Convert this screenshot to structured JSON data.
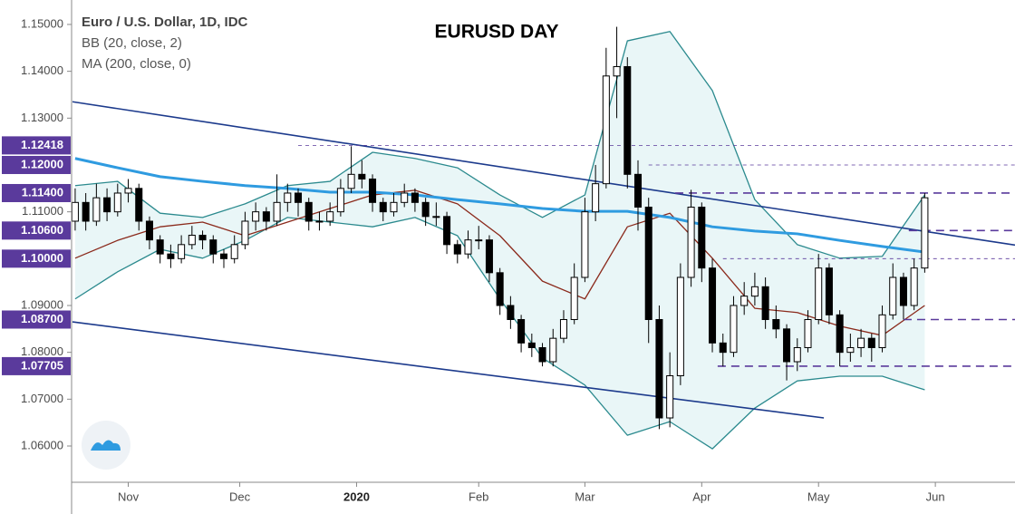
{
  "chart_data": {
    "type": "candlestick",
    "title": "EURUSD DAY",
    "header": [
      "Euro / U.S. Dollar, 1D, IDC",
      "BB (20, close, 2)",
      "MA (200, close, 0)"
    ],
    "xlim": [
      -0.5,
      177
    ],
    "ylim": [
      1.05226,
      1.15522
    ],
    "xticks": [
      {
        "value": 10,
        "label": "Nov"
      },
      {
        "value": 31,
        "label": "Dec"
      },
      {
        "value": 53,
        "label": "2020"
      },
      {
        "value": 76,
        "label": "Feb"
      },
      {
        "value": 96,
        "label": "Mar"
      },
      {
        "value": 118,
        "label": "Apr"
      },
      {
        "value": 140,
        "label": "May"
      },
      {
        "value": 162,
        "label": "Jun"
      }
    ],
    "yticks": [
      {
        "value": 1.15,
        "label": "1.15000"
      },
      {
        "value": 1.14,
        "label": "1.14000"
      },
      {
        "value": 1.13,
        "label": "1.13000"
      },
      {
        "value": 1.11,
        "label": "1.11000"
      },
      {
        "value": 1.09,
        "label": "1.09000"
      },
      {
        "value": 1.08,
        "label": "1.08000"
      },
      {
        "value": 1.07,
        "label": "1.07000"
      },
      {
        "value": 1.06,
        "label": "1.06000"
      }
    ],
    "x": [
      0,
      2,
      4,
      6,
      8,
      10,
      12,
      14,
      16,
      18,
      20,
      22,
      24,
      26,
      28,
      30,
      32,
      34,
      36,
      38,
      40,
      42,
      44,
      46,
      48,
      50,
      52,
      54,
      56,
      58,
      60,
      62,
      64,
      66,
      68,
      70,
      72,
      74,
      76,
      78,
      80,
      82,
      84,
      86,
      88,
      90,
      92,
      94,
      96,
      98,
      100,
      102,
      104,
      106,
      108,
      110,
      112,
      114,
      116,
      118,
      120,
      122,
      124,
      126,
      128,
      130,
      132,
      134,
      136,
      138,
      140,
      142,
      144,
      146,
      148,
      150,
      152,
      154,
      156,
      158,
      160
    ],
    "candles": [
      [
        1.108,
        1.115,
        1.106,
        1.112
      ],
      [
        1.112,
        1.114,
        1.106,
        1.108
      ],
      [
        1.108,
        1.116,
        1.107,
        1.113
      ],
      [
        1.113,
        1.115,
        1.108,
        1.11
      ],
      [
        1.11,
        1.116,
        1.109,
        1.114
      ],
      [
        1.114,
        1.117,
        1.112,
        1.115
      ],
      [
        1.115,
        1.116,
        1.106,
        1.108
      ],
      [
        1.108,
        1.109,
        1.102,
        1.104
      ],
      [
        1.104,
        1.105,
        1.099,
        1.101
      ],
      [
        1.101,
        1.103,
        1.098,
        1.1
      ],
      [
        1.1,
        1.105,
        1.099,
        1.103
      ],
      [
        1.103,
        1.107,
        1.102,
        1.105
      ],
      [
        1.105,
        1.106,
        1.102,
        1.104
      ],
      [
        1.104,
        1.105,
        1.099,
        1.101
      ],
      [
        1.101,
        1.102,
        1.098,
        1.1
      ],
      [
        1.1,
        1.105,
        1.099,
        1.103
      ],
      [
        1.103,
        1.11,
        1.102,
        1.108
      ],
      [
        1.108,
        1.112,
        1.106,
        1.11
      ],
      [
        1.11,
        1.111,
        1.106,
        1.108
      ],
      [
        1.108,
        1.118,
        1.107,
        1.112
      ],
      [
        1.112,
        1.116,
        1.11,
        1.114
      ],
      [
        1.114,
        1.115,
        1.109,
        1.112
      ],
      [
        1.112,
        1.113,
        1.106,
        1.108
      ],
      [
        1.108,
        1.11,
        1.106,
        1.108
      ],
      [
        1.108,
        1.112,
        1.107,
        1.11
      ],
      [
        1.11,
        1.117,
        1.109,
        1.115
      ],
      [
        1.115,
        1.124,
        1.114,
        1.118
      ],
      [
        1.118,
        1.121,
        1.115,
        1.117
      ],
      [
        1.117,
        1.118,
        1.11,
        1.112
      ],
      [
        1.112,
        1.113,
        1.108,
        1.11
      ],
      [
        1.11,
        1.114,
        1.109,
        1.112
      ],
      [
        1.112,
        1.116,
        1.111,
        1.114
      ],
      [
        1.114,
        1.115,
        1.11,
        1.112
      ],
      [
        1.112,
        1.113,
        1.107,
        1.109
      ],
      [
        1.109,
        1.112,
        1.107,
        1.109
      ],
      [
        1.109,
        1.11,
        1.101,
        1.103
      ],
      [
        1.103,
        1.104,
        1.099,
        1.101
      ],
      [
        1.101,
        1.106,
        1.1,
        1.104
      ],
      [
        1.104,
        1.107,
        1.102,
        1.104
      ],
      [
        1.104,
        1.105,
        1.095,
        1.097
      ],
      [
        1.097,
        1.098,
        1.088,
        1.09
      ],
      [
        1.09,
        1.092,
        1.085,
        1.087
      ],
      [
        1.087,
        1.088,
        1.08,
        1.082
      ],
      [
        1.082,
        1.084,
        1.079,
        1.081
      ],
      [
        1.081,
        1.082,
        1.077,
        1.078
      ],
      [
        1.078,
        1.085,
        1.077,
        1.083
      ],
      [
        1.083,
        1.089,
        1.082,
        1.087
      ],
      [
        1.087,
        1.099,
        1.086,
        1.096
      ],
      [
        1.096,
        1.113,
        1.095,
        1.11
      ],
      [
        1.11,
        1.12,
        1.108,
        1.116
      ],
      [
        1.116,
        1.145,
        1.115,
        1.139
      ],
      [
        1.139,
        1.1495,
        1.13,
        1.141
      ],
      [
        1.141,
        1.143,
        1.115,
        1.118
      ],
      [
        1.118,
        1.121,
        1.106,
        1.111
      ],
      [
        1.111,
        1.113,
        1.082,
        1.087
      ],
      [
        1.087,
        1.09,
        1.0636,
        1.066
      ],
      [
        1.066,
        1.08,
        1.064,
        1.075
      ],
      [
        1.075,
        1.099,
        1.073,
        1.096
      ],
      [
        1.096,
        1.1147,
        1.094,
        1.111
      ],
      [
        1.111,
        1.112,
        1.095,
        1.098
      ],
      [
        1.098,
        1.1,
        1.08,
        1.082
      ],
      [
        1.082,
        1.084,
        1.077,
        1.08
      ],
      [
        1.08,
        1.092,
        1.079,
        1.09
      ],
      [
        1.09,
        1.095,
        1.088,
        1.092
      ],
      [
        1.092,
        1.097,
        1.09,
        1.094
      ],
      [
        1.094,
        1.096,
        1.085,
        1.087
      ],
      [
        1.087,
        1.09,
        1.083,
        1.085
      ],
      [
        1.085,
        1.086,
        1.074,
        1.078
      ],
      [
        1.078,
        1.083,
        1.076,
        1.081
      ],
      [
        1.081,
        1.089,
        1.08,
        1.087
      ],
      [
        1.087,
        1.101,
        1.086,
        1.098
      ],
      [
        1.098,
        1.099,
        1.086,
        1.088
      ],
      [
        1.088,
        1.089,
        1.077,
        1.08
      ],
      [
        1.08,
        1.084,
        1.078,
        1.081
      ],
      [
        1.081,
        1.085,
        1.079,
        1.083
      ],
      [
        1.083,
        1.084,
        1.078,
        1.081
      ],
      [
        1.081,
        1.09,
        1.08,
        1.088
      ],
      [
        1.088,
        1.099,
        1.087,
        1.096
      ],
      [
        1.096,
        1.097,
        1.087,
        1.09
      ],
      [
        1.09,
        1.1,
        1.089,
        1.098
      ],
      [
        1.098,
        1.114,
        1.097,
        1.113
      ]
    ],
    "line_x": [
      0,
      8,
      16,
      24,
      32,
      40,
      48,
      56,
      64,
      72,
      80,
      88,
      96,
      104,
      112,
      120,
      128,
      136,
      144,
      152,
      160
    ],
    "bb_upper": {
      "color": "#2b8a8e",
      "values": [
        1.1156,
        1.1165,
        1.1097,
        1.1088,
        1.1117,
        1.1156,
        1.1165,
        1.1227,
        1.1214,
        1.1194,
        1.1136,
        1.1088,
        1.1136,
        1.1465,
        1.1485,
        1.1359,
        1.1126,
        1.103,
        1.1001,
        1.1005,
        1.1136
      ]
    },
    "bb_lower": {
      "color": "#2b8a8e",
      "values": [
        1.0914,
        1.0972,
        1.102,
        1.1001,
        1.1039,
        1.1088,
        1.1078,
        1.1068,
        1.1088,
        1.1049,
        1.0914,
        1.0788,
        1.073,
        1.0623,
        1.0652,
        1.0594,
        1.0681,
        1.0739,
        1.0749,
        1.0749,
        1.072
      ]
    },
    "band_fill": "#e9f6f7",
    "ma20": {
      "color": "#8b2a1c",
      "values": [
        1.1001,
        1.1039,
        1.1068,
        1.1078,
        1.1049,
        1.1078,
        1.1107,
        1.1136,
        1.1146,
        1.1117,
        1.1049,
        1.0952,
        1.0914,
        1.1068,
        1.1097,
        1.1001,
        1.0894,
        1.0885,
        1.0856,
        1.0836,
        1.09
      ]
    },
    "ma200": {
      "color": "#2f9be0",
      "values": [
        1.1214,
        1.1194,
        1.1175,
        1.1165,
        1.1156,
        1.115,
        1.1142,
        1.1142,
        1.1136,
        1.1126,
        1.1117,
        1.1107,
        1.1101,
        1.1101,
        1.1088,
        1.1068,
        1.1059,
        1.1053,
        1.1039,
        1.1026,
        1.1014
      ]
    },
    "trendlines": {
      "color": "#1c3a8c",
      "lines": [
        {
          "x": [
            -0.5,
            177
          ],
          "y": [
            1.1335,
            1.1029
          ]
        },
        {
          "x": [
            -0.5,
            141
          ],
          "y": [
            1.0865,
            1.066
          ]
        }
      ]
    },
    "levels": {
      "color": "#5a3a9c",
      "items": [
        {
          "value": 1.12418,
          "label": "1.12418",
          "x_start": 42,
          "style": "thin"
        },
        {
          "value": 1.12,
          "label": "1.12000",
          "x_start": 108,
          "style": "thin"
        },
        {
          "value": 1.114,
          "label": "1.11400",
          "x_start": 113,
          "style": "thick"
        },
        {
          "value": 1.106,
          "label": "1.10600",
          "x_start": 157,
          "style": "thick"
        },
        {
          "value": 1.1,
          "label": "1.10000",
          "x_start": 122,
          "style": "thin"
        },
        {
          "value": 1.087,
          "label": "1.08700",
          "x_start": 156,
          "style": "thick"
        },
        {
          "value": 1.07705,
          "label": "1.07705",
          "x_start": 121,
          "style": "thick"
        }
      ]
    },
    "up_color": "#ffffff",
    "down_color": "#000000"
  }
}
